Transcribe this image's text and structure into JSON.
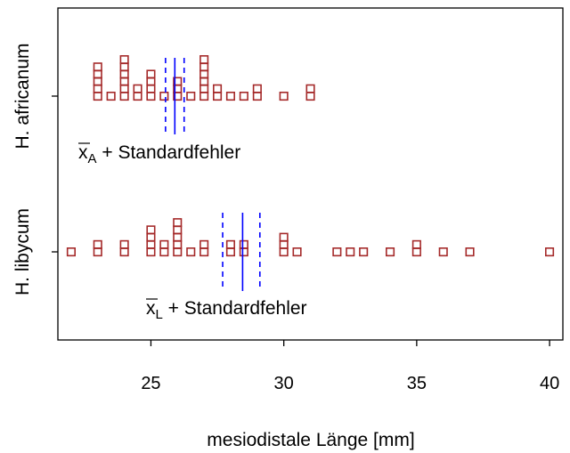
{
  "chart_data": {
    "type": "scatter",
    "subtype": "stacked-stripchart",
    "title": "",
    "xlabel": "mesiodistale Länge [mm]",
    "ylabel": "",
    "xlim": [
      21.5,
      40.5
    ],
    "xticks": [
      25,
      30,
      35,
      40
    ],
    "grid": false,
    "legend": "none",
    "marker_color": "#A52A2A",
    "line_color": "#0000FF",
    "groups": [
      {
        "name": "H. libycum",
        "mean_symbol": "x",
        "mean_subscript": "L",
        "annotation_text": "Standardfehler",
        "mean": 28.45,
        "se_low": 27.7,
        "se_high": 29.1,
        "values": [
          22,
          23,
          23,
          24,
          24,
          25,
          25,
          25,
          25,
          25.5,
          25.5,
          26,
          26,
          26,
          26,
          26,
          26.5,
          27,
          27,
          28,
          28,
          28.5,
          28.5,
          30,
          30,
          30,
          30.5,
          32,
          32.5,
          33,
          34,
          35,
          35,
          36,
          37,
          40
        ]
      },
      {
        "name": "H. africanum",
        "mean_symbol": "x",
        "mean_subscript": "A",
        "annotation_text": "Standardfehler",
        "mean": 25.9,
        "se_low": 25.55,
        "se_high": 26.25,
        "values": [
          23,
          23,
          23,
          23,
          23,
          23.5,
          24,
          24,
          24,
          24,
          24,
          24,
          24.5,
          24.5,
          25,
          25,
          25,
          25,
          25.5,
          26,
          26,
          26,
          26.5,
          27,
          27,
          27,
          27,
          27,
          27,
          27.5,
          27.5,
          28,
          28.5,
          29,
          29,
          30,
          31,
          31
        ]
      }
    ]
  }
}
